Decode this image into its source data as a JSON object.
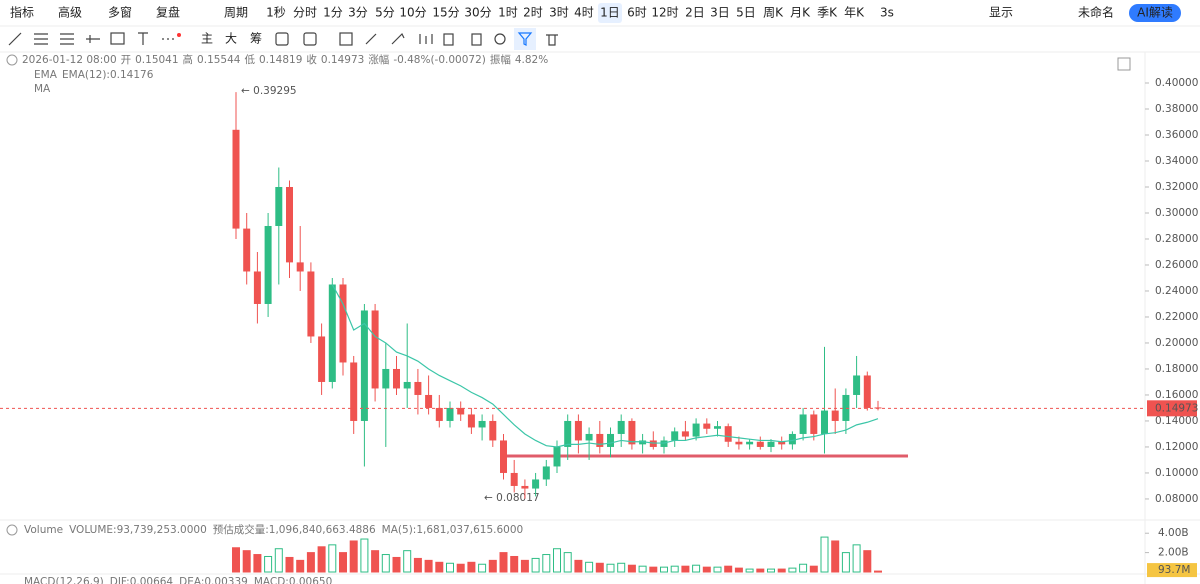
{
  "toolbar": {
    "row1": [
      "指标",
      "高级",
      "多窗",
      "复盘",
      "周期",
      "1秒",
      "分时",
      "1分",
      "3分",
      "5分",
      "10分",
      "15分",
      "30分",
      "1时",
      "2时",
      "3时",
      "4时",
      "1日",
      "6时",
      "12时",
      "2日",
      "3日",
      "5日",
      "周K",
      "月K",
      "季K",
      "年K",
      "3s",
      "显示",
      "未命名",
      "AI解读"
    ],
    "row2": [
      "主",
      "大",
      "筹"
    ]
  },
  "legend": {
    "date": "2026-01-12 08:00",
    "items": [
      {
        "label": "开",
        "value": "0.15041"
      },
      {
        "label": "高",
        "value": "0.15544"
      },
      {
        "label": "低",
        "value": "0.14819"
      },
      {
        "label": "收",
        "value": "0.14973"
      },
      {
        "label": "涨幅",
        "value": "-0.48%(-0.00072)"
      },
      {
        "label": "振幅",
        "value": "4.82%"
      }
    ],
    "ema_title": "EMA",
    "ema_value": "EMA(12):0.14176",
    "ma_title": "MA"
  },
  "volume_legend": [
    "Volume",
    "VOLUME:93,739,253.0000",
    "预估成交量:1,096,840,663.4886",
    "MA(5):1,681,037,615.6000"
  ],
  "macd_legend": [
    "MACD(12,26,9)",
    "DIF:0.00664",
    "DEA:0.00339",
    "MACD:0.00650"
  ],
  "chart_data": {
    "type": "candlestick",
    "open": [
      0.364,
      0.288,
      0.255,
      0.23,
      0.29,
      0.32,
      0.262,
      0.255,
      0.205,
      0.17,
      0.245,
      0.185,
      0.14,
      0.225,
      0.165,
      0.18,
      0.165,
      0.17,
      0.16,
      0.15,
      0.14,
      0.15,
      0.145,
      0.135,
      0.14,
      0.125,
      0.1,
      0.09,
      0.088,
      0.095,
      0.105,
      0.12,
      0.14,
      0.125,
      0.13,
      0.12,
      0.13,
      0.14,
      0.122,
      0.125,
      0.12,
      0.125,
      0.132,
      0.128,
      0.138,
      0.134,
      0.136,
      0.124,
      0.122,
      0.124,
      0.12,
      0.124,
      0.122,
      0.13,
      0.145,
      0.13,
      0.148,
      0.14,
      0.16,
      0.175,
      0.15041
    ],
    "high": [
      0.39295,
      0.3,
      0.27,
      0.3,
      0.335,
      0.325,
      0.29,
      0.262,
      0.215,
      0.25,
      0.25,
      0.19,
      0.23,
      0.23,
      0.2,
      0.19,
      0.215,
      0.18,
      0.175,
      0.16,
      0.155,
      0.155,
      0.15,
      0.145,
      0.145,
      0.13,
      0.11,
      0.095,
      0.1,
      0.11,
      0.125,
      0.145,
      0.145,
      0.135,
      0.14,
      0.135,
      0.145,
      0.142,
      0.13,
      0.132,
      0.128,
      0.135,
      0.14,
      0.142,
      0.142,
      0.14,
      0.138,
      0.128,
      0.126,
      0.128,
      0.126,
      0.128,
      0.132,
      0.15,
      0.148,
      0.197,
      0.165,
      0.165,
      0.19,
      0.178,
      0.15544
    ],
    "low": [
      0.28,
      0.245,
      0.215,
      0.22,
      0.245,
      0.25,
      0.24,
      0.2,
      0.16,
      0.165,
      0.175,
      0.13,
      0.105,
      0.155,
      0.12,
      0.16,
      0.15,
      0.145,
      0.145,
      0.135,
      0.135,
      0.14,
      0.13,
      0.125,
      0.12,
      0.095,
      0.085,
      0.08017,
      0.082,
      0.09,
      0.1,
      0.11,
      0.115,
      0.11,
      0.115,
      0.112,
      0.12,
      0.118,
      0.115,
      0.118,
      0.115,
      0.12,
      0.125,
      0.125,
      0.13,
      0.128,
      0.12,
      0.118,
      0.118,
      0.118,
      0.116,
      0.118,
      0.118,
      0.125,
      0.125,
      0.115,
      0.13,
      0.13,
      0.15,
      0.148,
      0.14819
    ],
    "close": [
      0.288,
      0.255,
      0.23,
      0.29,
      0.32,
      0.262,
      0.255,
      0.205,
      0.17,
      0.245,
      0.185,
      0.14,
      0.225,
      0.165,
      0.18,
      0.165,
      0.17,
      0.16,
      0.15,
      0.14,
      0.15,
      0.145,
      0.135,
      0.14,
      0.125,
      0.1,
      0.09,
      0.088,
      0.095,
      0.105,
      0.12,
      0.14,
      0.125,
      0.13,
      0.12,
      0.13,
      0.14,
      0.122,
      0.125,
      0.12,
      0.125,
      0.132,
      0.128,
      0.138,
      0.134,
      0.136,
      0.124,
      0.122,
      0.124,
      0.12,
      0.124,
      0.122,
      0.13,
      0.145,
      0.13,
      0.148,
      0.14,
      0.16,
      0.175,
      0.15,
      0.14973
    ],
    "up_color": "#2ebd85",
    "down_color": "#ef5350",
    "ylim": [
      0.0715,
      0.4177
    ],
    "yticks": [
      {
        "value": 0.08,
        "label": "0.08000"
      },
      {
        "value": 0.1,
        "label": "0.10000"
      },
      {
        "value": 0.12,
        "label": "0.12000"
      },
      {
        "value": 0.14,
        "label": "0.14000"
      },
      {
        "value": 0.16,
        "label": "0.16000"
      },
      {
        "value": 0.18,
        "label": "0.18000"
      },
      {
        "value": 0.2,
        "label": "0.20000"
      },
      {
        "value": 0.22,
        "label": "0.22000"
      },
      {
        "value": 0.24,
        "label": "0.24000"
      },
      {
        "value": 0.26,
        "label": "0.26000"
      },
      {
        "value": 0.28,
        "label": "0.28000"
      },
      {
        "value": 0.3,
        "label": "0.30000"
      },
      {
        "value": 0.32,
        "label": "0.32000"
      },
      {
        "value": 0.34,
        "label": "0.34000"
      },
      {
        "value": 0.36,
        "label": "0.36000"
      },
      {
        "value": 0.38,
        "label": "0.38000"
      },
      {
        "value": 0.4,
        "label": "0.40000"
      }
    ],
    "ema": {
      "color": "#3cc6a8",
      "values": [
        null,
        null,
        null,
        null,
        null,
        null,
        null,
        null,
        null,
        0.245,
        0.23,
        0.21,
        0.215,
        0.205,
        0.2,
        0.193,
        0.19,
        0.186,
        0.18,
        0.175,
        0.171,
        0.167,
        0.162,
        0.158,
        0.153,
        0.145,
        0.137,
        0.13,
        0.125,
        0.121,
        0.12,
        0.122,
        0.122,
        0.123,
        0.122,
        0.123,
        0.125,
        0.124,
        0.124,
        0.123,
        0.123,
        0.125,
        0.125,
        0.127,
        0.128,
        0.129,
        0.128,
        0.127,
        0.126,
        0.125,
        0.125,
        0.124,
        0.125,
        0.127,
        0.128,
        0.13,
        0.131,
        0.133,
        0.137,
        0.139,
        0.14176
      ]
    },
    "support_line": 0.113,
    "annotations": [
      "← 0.39295",
      "← 0.08017"
    ],
    "volume": {
      "values": [
        2.5,
        2.2,
        1.8,
        1.6,
        2.4,
        1.5,
        1.2,
        2.0,
        2.6,
        2.8,
        2.0,
        3.2,
        3.4,
        2.2,
        1.8,
        1.5,
        2.2,
        1.4,
        1.2,
        1.0,
        0.9,
        0.8,
        1.0,
        0.8,
        1.2,
        2.0,
        1.6,
        1.2,
        1.4,
        1.8,
        2.4,
        2.0,
        1.2,
        1.0,
        0.9,
        0.8,
        0.9,
        0.7,
        0.6,
        0.5,
        0.5,
        0.6,
        0.6,
        0.7,
        0.5,
        0.5,
        0.6,
        0.4,
        0.3,
        0.3,
        0.3,
        0.3,
        0.4,
        0.8,
        0.6,
        3.6,
        3.2,
        2.0,
        2.8,
        2.2,
        0.0937
      ],
      "ylim": [
        0,
        4.95
      ],
      "yticks": [
        {
          "value": 2,
          "label": "2.00B"
        },
        {
          "value": 4,
          "label": "4.00B"
        }
      ],
      "tag": {
        "value": 0.0937,
        "label": "93.7M"
      }
    }
  }
}
